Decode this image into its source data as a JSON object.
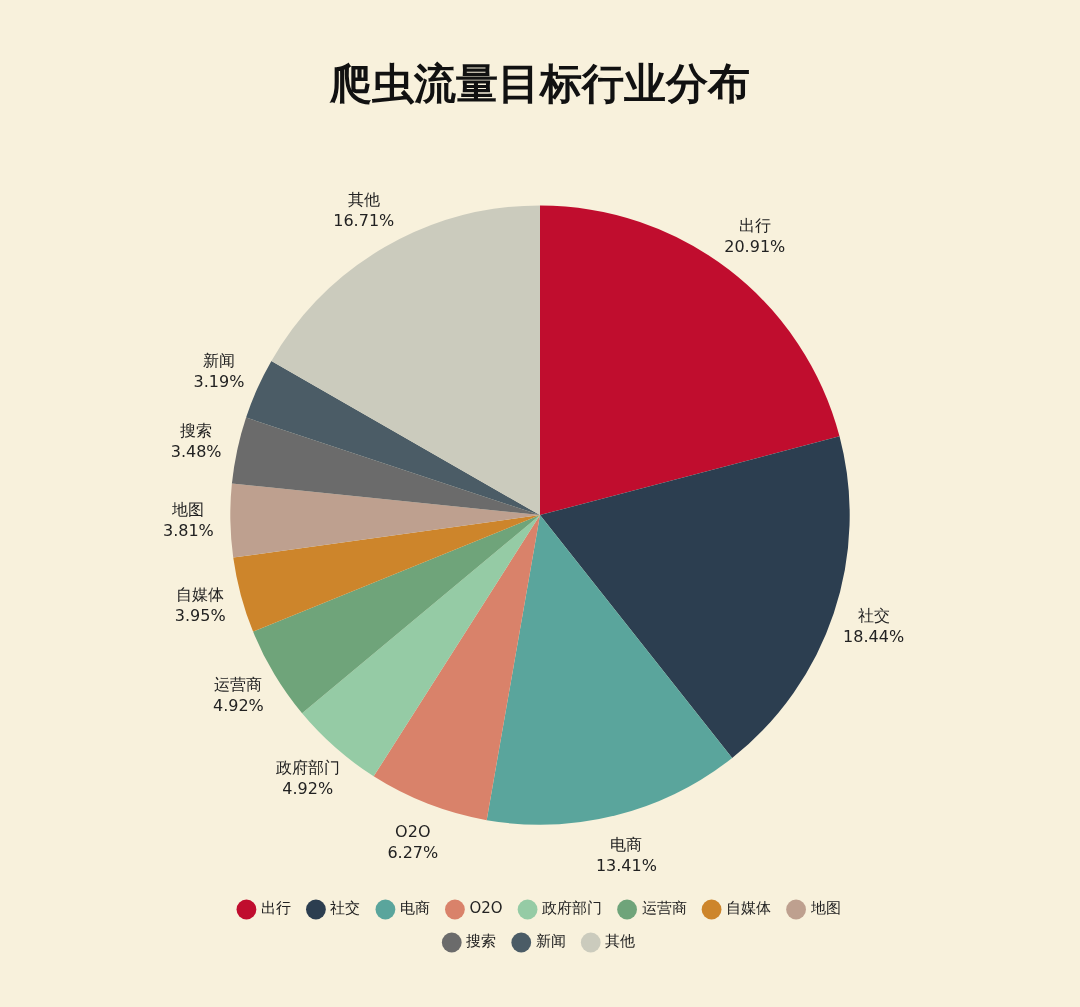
{
  "chart_data": {
    "type": "pie",
    "title": "爬虫流量目标行业分布",
    "categories": [
      "出行",
      "社交",
      "电商",
      "O2O",
      "政府部门",
      "运营商",
      "自媒体",
      "地图",
      "搜索",
      "新闻",
      "其他"
    ],
    "values": [
      20.91,
      18.44,
      13.41,
      6.27,
      4.92,
      4.92,
      3.95,
      3.81,
      3.48,
      3.19,
      16.71
    ],
    "value_labels": [
      "20.91%",
      "18.44%",
      "13.41%",
      "6.27%",
      "4.92%",
      "4.92%",
      "3.95%",
      "3.81%",
      "3.48%",
      "3.19%",
      "16.71%"
    ],
    "colors": [
      "#c00d2e",
      "#2c3e50",
      "#5aa59c",
      "#d9826a",
      "#95cba5",
      "#6fa47a",
      "#cd852b",
      "#bea08f",
      "#6b6b6b",
      "#4b5c66",
      "#cbcbbd"
    ],
    "legend": "bottom"
  }
}
